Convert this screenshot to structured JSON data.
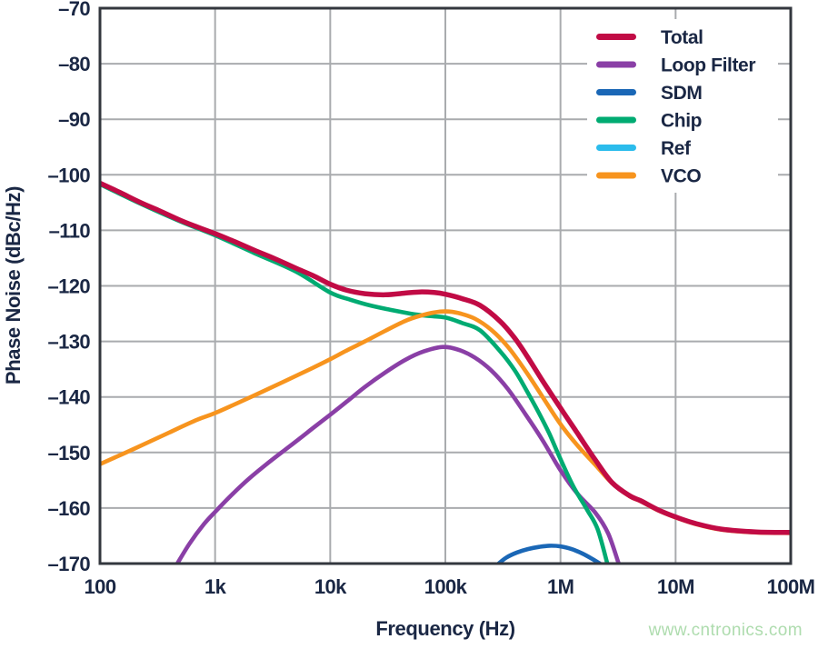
{
  "watermark": {
    "text": "www.cntronics.com",
    "color": "#aedcae"
  },
  "style": {
    "background": "#ffffff",
    "grid_color": "#a9abae",
    "frame_color": "#33373e",
    "text_color": "#1a2744",
    "legend_background": "#ffffff"
  },
  "chart_data": {
    "type": "line",
    "title": "",
    "xlabel": "Frequency (Hz)",
    "ylabel": "Phase Noise (dBc/Hz)",
    "x_scale": "log",
    "y_scale": "linear",
    "xlim": [
      100,
      100000000
    ],
    "ylim": [
      -170,
      -70
    ],
    "grid": true,
    "legend_position": "top-right-inside",
    "x_ticks": {
      "values": [
        100,
        1000,
        10000,
        100000,
        1000000,
        10000000,
        100000000
      ],
      "labels": [
        "100",
        "1k",
        "10k",
        "100k",
        "1M",
        "10M",
        "100M"
      ]
    },
    "y_ticks": {
      "values": [
        -70,
        -80,
        -90,
        -100,
        -110,
        -120,
        -130,
        -140,
        -150,
        -160,
        -170
      ],
      "labels": [
        "–70",
        "–80",
        "–90",
        "–100",
        "–110",
        "–120",
        "–130",
        "–140",
        "–150",
        "–160",
        "–170"
      ]
    },
    "draw_order": [
      "Ref",
      "SDM",
      "Loop Filter",
      "Chip",
      "VCO",
      "Total"
    ],
    "series": [
      {
        "name": "Total",
        "color": "#c10b45",
        "width": 5.5,
        "points": [
          [
            100,
            -101.5
          ],
          [
            150,
            -103.2
          ],
          [
            220,
            -104.9
          ],
          [
            330,
            -106.5
          ],
          [
            500,
            -108.2
          ],
          [
            700,
            -109.4
          ],
          [
            1000,
            -110.6
          ],
          [
            1500,
            -112.1
          ],
          [
            2200,
            -113.6
          ],
          [
            3300,
            -115.1
          ],
          [
            5000,
            -116.8
          ],
          [
            7000,
            -118.1
          ],
          [
            10000,
            -119.7
          ],
          [
            14000,
            -120.8
          ],
          [
            20000,
            -121.4
          ],
          [
            30000,
            -121.6
          ],
          [
            45000,
            -121.3
          ],
          [
            60000,
            -121.1
          ],
          [
            80000,
            -121.2
          ],
          [
            100000,
            -121.5
          ],
          [
            140000,
            -122.3
          ],
          [
            200000,
            -123.5
          ],
          [
            300000,
            -126.4
          ],
          [
            400000,
            -129.4
          ],
          [
            500000,
            -132.3
          ],
          [
            700000,
            -137.1
          ],
          [
            1000000,
            -142.0
          ],
          [
            1400000,
            -146.5
          ],
          [
            2000000,
            -151.3
          ],
          [
            2800000,
            -155.4
          ],
          [
            4000000,
            -157.8
          ],
          [
            5000000,
            -158.7
          ],
          [
            7000000,
            -160.3
          ],
          [
            10000000,
            -161.6
          ],
          [
            15000000,
            -162.8
          ],
          [
            25000000,
            -163.8
          ],
          [
            50000000,
            -164.3
          ],
          [
            100000000,
            -164.4
          ]
        ]
      },
      {
        "name": "Loop Filter",
        "color": "#8a3fa6",
        "width": 4.6,
        "points": [
          [
            470,
            -170
          ],
          [
            600,
            -166.4
          ],
          [
            800,
            -162.9
          ],
          [
            1000,
            -160.7
          ],
          [
            1400,
            -157.6
          ],
          [
            2000,
            -154.6
          ],
          [
            3000,
            -151.6
          ],
          [
            4000,
            -149.6
          ],
          [
            5500,
            -147.4
          ],
          [
            7500,
            -145.2
          ],
          [
            10000,
            -143.2
          ],
          [
            14000,
            -140.8
          ],
          [
            20000,
            -138.2
          ],
          [
            30000,
            -135.6
          ],
          [
            45000,
            -133.3
          ],
          [
            65000,
            -131.8
          ],
          [
            95000,
            -131.0
          ],
          [
            130000,
            -131.5
          ],
          [
            180000,
            -132.9
          ],
          [
            250000,
            -135.2
          ],
          [
            350000,
            -138.6
          ],
          [
            500000,
            -143.2
          ],
          [
            700000,
            -147.8
          ],
          [
            1000000,
            -153.2
          ],
          [
            1400000,
            -157.4
          ],
          [
            2000000,
            -160.8
          ],
          [
            2600000,
            -164.6
          ],
          [
            3200000,
            -170
          ]
        ]
      },
      {
        "name": "SDM",
        "color": "#1a67b6",
        "width": 4.6,
        "points": [
          [
            290000,
            -170
          ],
          [
            340000,
            -168.9
          ],
          [
            420000,
            -168.0
          ],
          [
            520000,
            -167.4
          ],
          [
            650000,
            -167.0
          ],
          [
            800000,
            -166.8
          ],
          [
            1000000,
            -166.9
          ],
          [
            1250000,
            -167.4
          ],
          [
            1550000,
            -168.2
          ],
          [
            1900000,
            -169.2
          ],
          [
            2200000,
            -170
          ]
        ]
      },
      {
        "name": "Chip",
        "color": "#00ab72",
        "width": 4.6,
        "points": [
          [
            100,
            -101.7
          ],
          [
            220,
            -105.1
          ],
          [
            500,
            -108.4
          ],
          [
            1000,
            -110.9
          ],
          [
            2200,
            -114.1
          ],
          [
            5000,
            -117.4
          ],
          [
            10000,
            -121.2
          ],
          [
            15000,
            -122.5
          ],
          [
            22000,
            -123.5
          ],
          [
            33000,
            -124.3
          ],
          [
            50000,
            -125.0
          ],
          [
            70000,
            -125.4
          ],
          [
            100000,
            -125.7
          ],
          [
            140000,
            -126.7
          ],
          [
            200000,
            -128.0
          ],
          [
            300000,
            -131.8
          ],
          [
            400000,
            -135.2
          ],
          [
            500000,
            -138.6
          ],
          [
            650000,
            -142.9
          ],
          [
            800000,
            -146.6
          ],
          [
            1000000,
            -151.2
          ],
          [
            1300000,
            -156.2
          ],
          [
            1700000,
            -160.3
          ],
          [
            2100000,
            -163.8
          ],
          [
            2550000,
            -170
          ]
        ]
      },
      {
        "name": "Ref",
        "color": "#2bbcec",
        "width": 4.6,
        "points": [],
        "note": "curve not visible within displayed axis range"
      },
      {
        "name": "VCO",
        "color": "#f7941e",
        "width": 4.6,
        "points": [
          [
            100,
            -152.1
          ],
          [
            200,
            -149.3
          ],
          [
            400,
            -146.4
          ],
          [
            700,
            -144.1
          ],
          [
            1000,
            -142.9
          ],
          [
            2000,
            -140.1
          ],
          [
            4000,
            -137.2
          ],
          [
            7000,
            -134.8
          ],
          [
            10000,
            -133.2
          ],
          [
            14000,
            -131.6
          ],
          [
            20000,
            -130.0
          ],
          [
            30000,
            -128.1
          ],
          [
            45000,
            -126.3
          ],
          [
            60000,
            -125.4
          ],
          [
            80000,
            -124.8
          ],
          [
            100000,
            -124.6
          ],
          [
            130000,
            -124.9
          ],
          [
            180000,
            -125.9
          ],
          [
            250000,
            -127.9
          ],
          [
            350000,
            -131.0
          ],
          [
            500000,
            -135.4
          ],
          [
            700000,
            -140.0
          ],
          [
            1000000,
            -144.9
          ],
          [
            1400000,
            -148.7
          ],
          [
            2000000,
            -152.2
          ],
          [
            2800000,
            -155.5
          ],
          [
            4000000,
            -157.9
          ],
          [
            5000000,
            -158.8
          ],
          [
            7000000,
            -160.4
          ],
          [
            10000000,
            -161.7
          ],
          [
            15000000,
            -162.9
          ],
          [
            25000000,
            -163.9
          ],
          [
            50000000,
            -164.4
          ],
          [
            100000000,
            -164.5
          ]
        ]
      }
    ]
  }
}
